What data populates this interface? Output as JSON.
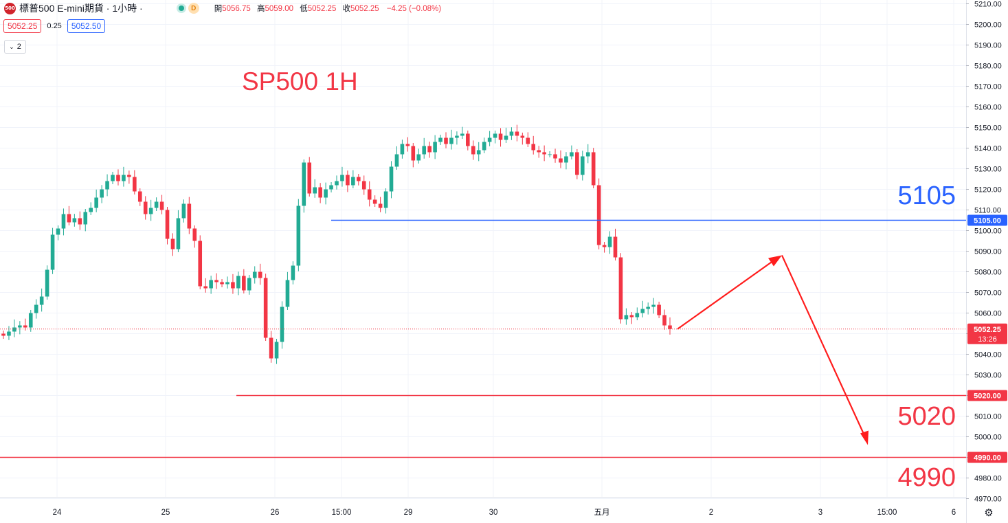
{
  "header": {
    "symbol_badge": "500",
    "title": "標普500 E-mini期貨 · 1小時 ·",
    "status_badge": "D",
    "ohlc": [
      {
        "label": "開",
        "value": "5056.75"
      },
      {
        "label": "高",
        "value": "5059.00"
      },
      {
        "label": "低",
        "value": "5052.25"
      },
      {
        "label": "收",
        "value": "5052.25"
      }
    ],
    "change": "−4.25 (−0.08%)"
  },
  "quote": {
    "bid": "5052.25",
    "spread": "0.25",
    "ask": "5052.50"
  },
  "indicators_toggle": {
    "count": "2"
  },
  "colors": {
    "up": "#22ab94",
    "down": "#f23645",
    "blue": "#2962ff",
    "red_line": "#f23645",
    "arrow": "#ff1d1d",
    "grid": "#f0f3fa"
  },
  "chart_data": {
    "type": "candlestick",
    "title": "SP500 1H",
    "ylim": [
      4966,
      5212
    ],
    "y_ticks": [
      4970,
      4980,
      4990,
      5000,
      5010,
      5020,
      5030,
      5040,
      5050,
      5060,
      5070,
      5080,
      5090,
      5100,
      5110,
      5120,
      5130,
      5140,
      5150,
      5160,
      5170,
      5180,
      5190,
      5200,
      5210
    ],
    "y_tick_labels": [
      "4970.00",
      "4980.00",
      "4990.00",
      "5000.00",
      "5010.00",
      "5020.00",
      "5030.00",
      "5040.00",
      "5050.00",
      "5060.00",
      "5070.00",
      "5080.00",
      "5090.00",
      "5100.00",
      "5110.00",
      "5120.00",
      "5130.00",
      "5140.00",
      "5150.00",
      "5160.00",
      "5170.00",
      "5180.00",
      "5190.00",
      "5200.00",
      "5210.00"
    ],
    "x_ticks": [
      "24",
      "25",
      "26",
      "15:00",
      "29",
      "30",
      "五月",
      "2",
      "3",
      "15:00",
      "6"
    ],
    "close_series": [
      5049,
      5051,
      5053,
      5054,
      5053,
      5060,
      5064,
      5068,
      5081,
      5098,
      5101,
      5108,
      5104,
      5106,
      5103,
      5109,
      5111,
      5116,
      5120,
      5124,
      5127,
      5124,
      5127,
      5126,
      5119,
      5114,
      5108,
      5111,
      5114,
      5110,
      5096,
      5091,
      5106,
      5113,
      5101,
      5095,
      5073,
      5072,
      5076,
      5075,
      5074,
      5075,
      5072,
      5078,
      5071,
      5077,
      5080,
      5077,
      5048,
      5038,
      5046,
      5063,
      5076,
      5083,
      5112,
      5133,
      5118,
      5121,
      5116,
      5120,
      5122,
      5124,
      5127,
      5122,
      5126,
      5124,
      5120,
      5115,
      5113,
      5111,
      5119,
      5131,
      5137,
      5142,
      5141,
      5134,
      5137,
      5141,
      5138,
      5143,
      5145,
      5142,
      5145,
      5146,
      5147,
      5141,
      5137,
      5139,
      5143,
      5145,
      5147,
      5144,
      5146,
      5148,
      5146,
      5145,
      5142,
      5139,
      5138,
      5137,
      5137,
      5135,
      5133,
      5136,
      5138,
      5127,
      5136,
      5138,
      5122,
      5093,
      5092,
      5097,
      5087,
      5057,
      5059,
      5058,
      5060,
      5062,
      5063,
      5064,
      5059,
      5054,
      5052.25
    ],
    "last_price": "5052.25",
    "countdown": "13:26",
    "annotations": [
      {
        "text": "5105",
        "level": 5105,
        "label": "5105.00",
        "color": "blue"
      },
      {
        "text": "5020",
        "level": 5020,
        "label": "5020.00",
        "color": "red"
      },
      {
        "text": "4990",
        "level": 4990,
        "label": "4990.00",
        "color": "red"
      }
    ],
    "forecast_path": [
      5052.25,
      5088,
      4996
    ]
  }
}
